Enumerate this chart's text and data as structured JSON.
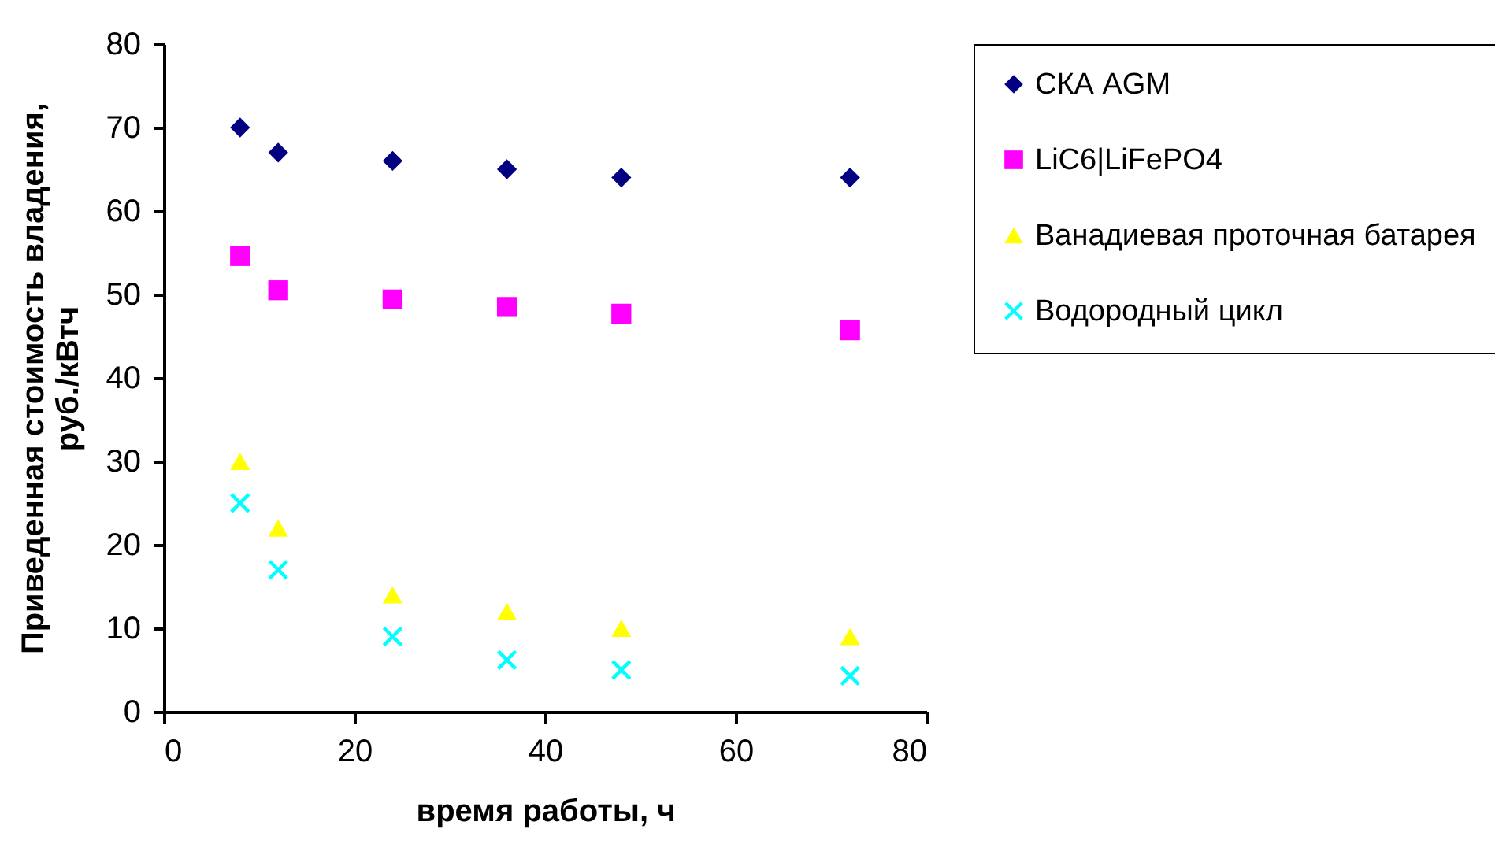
{
  "chart_data": {
    "type": "scatter",
    "xlabel": "время работы, ч",
    "ylabel": "Приведенная стоимость владения, руб./кВтч",
    "xlim": [
      0,
      80
    ],
    "xticks": [
      0,
      20,
      40,
      60,
      80
    ],
    "ylim": [
      0,
      80
    ],
    "yticks": [
      0,
      10,
      20,
      30,
      40,
      50,
      60,
      70,
      80
    ],
    "grid": false,
    "legend": "right",
    "x": [
      8,
      12,
      24,
      36,
      48,
      72
    ],
    "series": [
      {
        "name": "СКА AGM",
        "color": "#000080",
        "marker": "diamond",
        "values": [
          70,
          67,
          66,
          65,
          64,
          64
        ]
      },
      {
        "name": "LiC6|LiFePO4",
        "color": "#ff00ff",
        "marker": "square",
        "values": [
          54.6,
          50.5,
          49.4,
          48.5,
          47.7,
          45.7
        ]
      },
      {
        "name": "Ванадиевая проточная батарея",
        "color": "#ffff00",
        "marker": "triangle",
        "values": [
          30,
          22,
          14,
          12,
          10,
          9
        ]
      },
      {
        "name": "Водородный цикл",
        "color": "#00ffff",
        "marker": "cross",
        "values": [
          25,
          17,
          9,
          6.2,
          5,
          4.3
        ]
      }
    ]
  }
}
